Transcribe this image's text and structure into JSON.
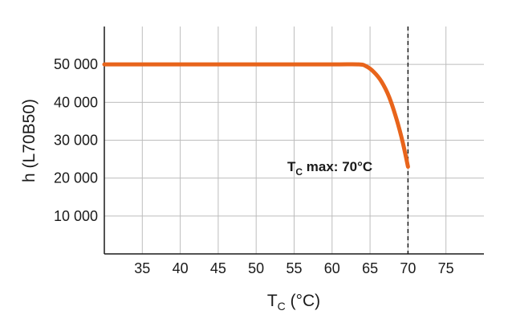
{
  "chart_data": {
    "type": "line",
    "title": "",
    "xlabel_main": "T",
    "xlabel_sub": "C",
    "xlabel_unit": " (°C)",
    "ylabel": "h (L70B50)",
    "xlim": [
      30,
      80
    ],
    "ylim": [
      0,
      60000
    ],
    "x_ticks": [
      35,
      40,
      45,
      50,
      55,
      60,
      65,
      70,
      75
    ],
    "x_tick_labels": [
      "35",
      "40",
      "45",
      "50",
      "55",
      "60",
      "65",
      "70",
      "75"
    ],
    "y_ticks": [
      10000,
      20000,
      30000,
      40000,
      50000
    ],
    "y_tick_labels": [
      "10 000",
      "20 000",
      "30 000",
      "40 000",
      "50 000"
    ],
    "grid": true,
    "series": [
      {
        "color": "#e8641b",
        "x": [
          30,
          40,
          50,
          60,
          63.5,
          64.5,
          65.5,
          66.5,
          67.5,
          68.5,
          69.3,
          70
        ],
        "y": [
          50000,
          50000,
          50000,
          50000,
          50000,
          49500,
          48000,
          45500,
          41500,
          35500,
          29500,
          23000
        ]
      }
    ],
    "reference_line": {
      "x": 70,
      "style": "dashed",
      "color": "#1a1a1a"
    },
    "annotation": {
      "main": "T",
      "sub": "C",
      "rest": " max: 70°C"
    }
  }
}
